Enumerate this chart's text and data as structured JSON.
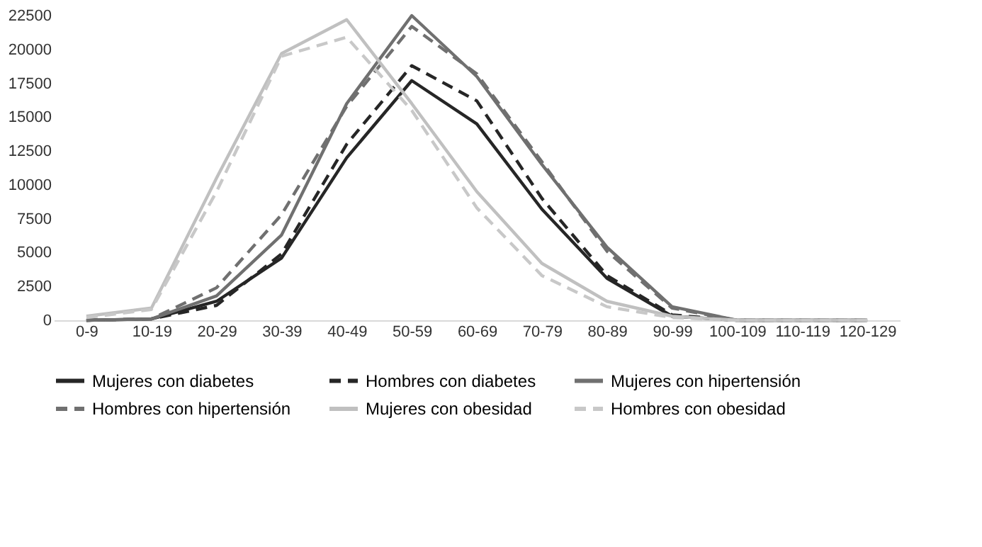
{
  "chart_data": {
    "type": "line",
    "categories": [
      "0-9",
      "10-19",
      "20-29",
      "30-39",
      "40-49",
      "50-59",
      "60-69",
      "70-79",
      "80-89",
      "90-99",
      "100-109",
      "110-119",
      "120-129"
    ],
    "series": [
      {
        "name": "Mujeres con diabetes",
        "color": "#262626",
        "line_style": "solid",
        "values": [
          0,
          100,
          1400,
          4600,
          12000,
          17700,
          14500,
          8200,
          3100,
          300,
          0,
          0,
          0
        ]
      },
      {
        "name": "Hombres con diabetes",
        "color": "#262626",
        "line_style": "dashed",
        "values": [
          0,
          100,
          1100,
          4900,
          13000,
          18800,
          16200,
          9000,
          3300,
          400,
          0,
          0,
          0
        ]
      },
      {
        "name": "Mujeres con hipertensión",
        "color": "#707070",
        "line_style": "solid",
        "values": [
          0,
          100,
          1800,
          6300,
          16000,
          22500,
          18000,
          11500,
          5400,
          1000,
          0,
          0,
          0
        ]
      },
      {
        "name": "Hombres con hipertensión",
        "color": "#707070",
        "line_style": "dashed",
        "values": [
          0,
          100,
          2400,
          7800,
          15800,
          21700,
          18200,
          11700,
          5100,
          900,
          0,
          0,
          0
        ]
      },
      {
        "name": "Mujeres con obesidad",
        "color": "#c0c0c0",
        "line_style": "solid",
        "values": [
          300,
          900,
          10500,
          19700,
          22200,
          16000,
          9500,
          4200,
          1400,
          300,
          0,
          0,
          0
        ]
      },
      {
        "name": "Hombres con obesidad",
        "color": "#c8c8c8",
        "line_style": "dashed",
        "values": [
          200,
          800,
          9500,
          19500,
          20900,
          15500,
          8300,
          3300,
          1000,
          200,
          0,
          0,
          0
        ]
      }
    ],
    "ylim": [
      0,
      22500
    ],
    "yticks": [
      0,
      2500,
      5000,
      7500,
      10000,
      12500,
      15000,
      17500,
      20000,
      22500
    ],
    "grid": false,
    "legend": "bottom",
    "marker": "none"
  }
}
